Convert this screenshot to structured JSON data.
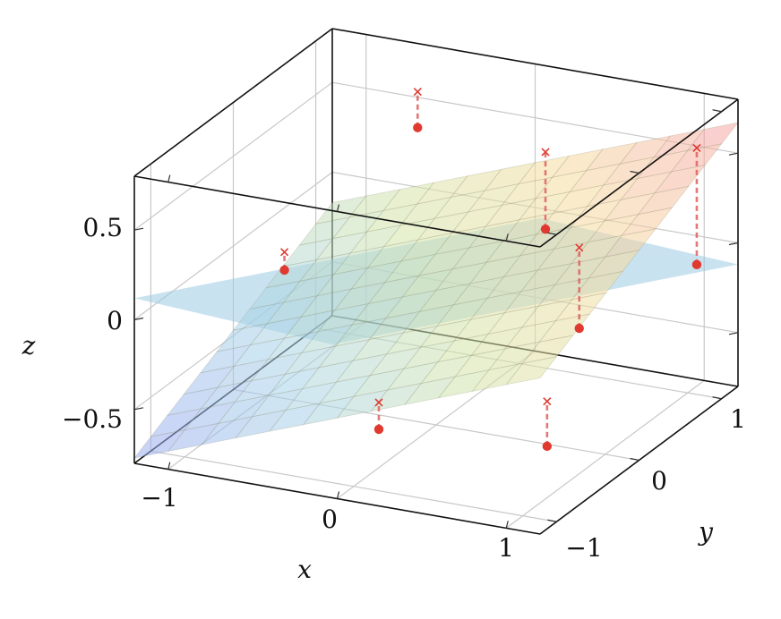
{
  "chart_data": {
    "type": "surface3d",
    "xlabel": "x",
    "ylabel": "y",
    "zlabel": "z",
    "xlim": [
      -1.2,
      1.2
    ],
    "ylim": [
      -1.2,
      1.2
    ],
    "zlim": [
      -0.8,
      0.8
    ],
    "x_ticks": [
      -1,
      0,
      1
    ],
    "y_ticks": [
      -1,
      0,
      1
    ],
    "z_ticks": [
      -0.5,
      0,
      0.5
    ],
    "x_tick_labels": [
      "−1",
      "0",
      "1"
    ],
    "y_tick_labels": [
      "−1",
      "0",
      "1"
    ],
    "z_tick_labels": [
      "−0.5",
      "0",
      "0.5"
    ],
    "grid": true,
    "colormap": [
      "#9aaaf0",
      "#a8d4e8",
      "#d4e4a8",
      "#f6dca0",
      "#f4a4a4"
    ],
    "surfaces": [
      {
        "description": "fitted plane",
        "z_equation": "0.35*x + 0.25*y - 0.05",
        "colormapped": true,
        "opacity": 0.55
      },
      {
        "description": "reference plane",
        "z_equation": "0.35*x - 0.45*y",
        "color": "#9ccbe4",
        "opacity": 0.55
      }
    ],
    "observed_points": [
      {
        "x": -0.8,
        "y": -0.2,
        "z": 0.0
      },
      {
        "x": -0.5,
        "y": 0.8,
        "z": 0.5
      },
      {
        "x": 0.5,
        "y": 0.3,
        "z": 0.27
      },
      {
        "x": 0.1,
        "y": -0.9,
        "z": -0.5
      },
      {
        "x": 0.9,
        "y": -0.5,
        "z": -0.6
      },
      {
        "x": 0.7,
        "y": 0.3,
        "z": -0.25
      },
      {
        "x": 1.2,
        "y": 0.7,
        "z": 0.05
      }
    ],
    "predicted_points": [
      {
        "x": -0.8,
        "y": -0.2,
        "z": 0.1
      },
      {
        "x": -0.5,
        "y": 0.8,
        "z": 0.7
      },
      {
        "x": 0.5,
        "y": 0.3,
        "z": 0.7
      },
      {
        "x": 0.1,
        "y": -0.9,
        "z": -0.35
      },
      {
        "x": 0.9,
        "y": -0.5,
        "z": -0.35
      },
      {
        "x": 0.7,
        "y": 0.3,
        "z": 0.2
      },
      {
        "x": 1.2,
        "y": 0.7,
        "z": 0.7
      }
    ]
  }
}
